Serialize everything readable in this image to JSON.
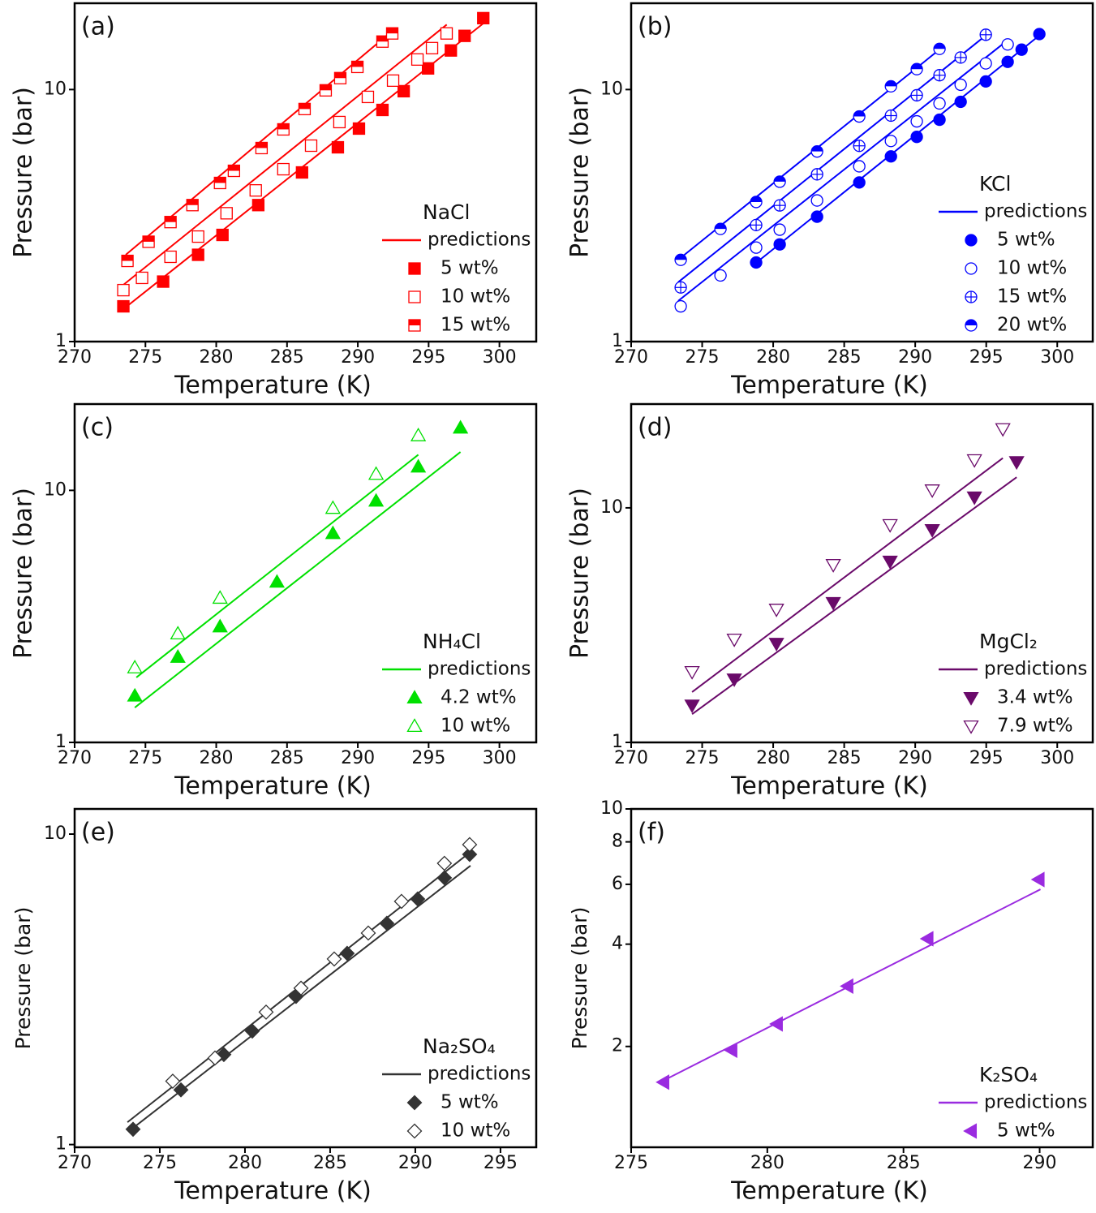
{
  "chart_data": [
    {
      "type": "scatter",
      "label": "(a)",
      "xlabel": "Temperature (K)",
      "ylabel": "Pressure (bar)",
      "xlim": [
        270,
        302.6
      ],
      "ylim": [
        1,
        22
      ],
      "xticks": [
        270,
        275,
        280,
        285,
        290,
        295,
        300
      ],
      "yticks": [
        1,
        10
      ],
      "log_y": true,
      "legend": "lower right",
      "legend_title": "NaCl",
      "color": "#ff0000",
      "series": [
        {
          "name": "predictions",
          "type": "line",
          "lines": [
            {
              "x": [
                273.61,
                292.55
              ],
              "values": [
                2.21,
                17.3
              ]
            },
            {
              "x": [
                273.33,
                296.28
              ],
              "values": [
                1.66,
                18.1
              ]
            },
            {
              "x": [
                273.33,
                298.97
              ],
              "values": [
                1.33,
                18.5
              ]
            }
          ]
        },
        {
          "name": "5 wt%",
          "marker": "square",
          "fill": "full",
          "x": [
            273.44,
            276.25,
            278.72,
            280.44,
            282.97,
            286.06,
            288.59,
            290.08,
            291.74,
            293.24,
            294.96,
            296.57,
            297.54,
            298.86
          ],
          "values": [
            1.38,
            1.73,
            2.21,
            2.65,
            3.48,
            4.69,
            5.9,
            7.0,
            8.3,
            9.85,
            12.13,
            14.29,
            16.33,
            19.2
          ]
        },
        {
          "name": "10 wt%",
          "marker": "square",
          "fill": "none",
          "x": [
            273.44,
            274.76,
            276.77,
            278.72,
            280.73,
            282.79,
            284.74,
            286.7,
            288.7,
            290.71,
            292.49,
            294.21,
            295.24,
            296.27
          ],
          "values": [
            1.6,
            1.79,
            2.17,
            2.61,
            3.23,
            3.98,
            4.83,
            5.99,
            7.43,
            9.35,
            10.85,
            13.16,
            14.6,
            16.7
          ]
        },
        {
          "name": "15 wt%",
          "marker": "square",
          "fill": "top",
          "x": [
            273.73,
            275.22,
            276.77,
            278.32,
            280.27,
            281.25,
            283.2,
            284.74,
            286.24,
            287.73,
            288.76,
            289.97,
            291.74,
            292.43
          ],
          "values": [
            2.09,
            2.49,
            2.98,
            3.48,
            4.26,
            4.76,
            5.86,
            6.95,
            8.37,
            9.93,
            11.1,
            12.3,
            15.5,
            16.7
          ]
        }
      ]
    },
    {
      "type": "scatter",
      "label": "(b)",
      "xlabel": "Temperature (K)",
      "ylabel": "Pressure (bar)",
      "xlim": [
        270,
        302.5
      ],
      "ylim": [
        1,
        22
      ],
      "xticks": [
        270,
        275,
        280,
        285,
        290,
        295,
        300
      ],
      "yticks": [
        1,
        10
      ],
      "log_y": true,
      "legend": "lower right",
      "legend_title": "KCl",
      "color": "#0000ff",
      "series": [
        {
          "name": "predictions",
          "type": "line",
          "lines": [
            {
              "x": [
                273.31,
                291.83
              ],
              "values": [
                2.11,
                14.6
              ]
            },
            {
              "x": [
                273.31,
                295.03
              ],
              "values": [
                1.72,
                16.5
              ]
            },
            {
              "x": [
                273.31,
                296.57
              ],
              "values": [
                1.45,
                15.8
              ]
            },
            {
              "x": [
                278.69,
                298.86
              ],
              "values": [
                2.03,
                16.6
              ]
            }
          ]
        },
        {
          "name": "5 wt%",
          "marker": "circle",
          "fill": "full",
          "x": [
            278.8,
            280.46,
            283.09,
            286.06,
            288.29,
            290.11,
            291.71,
            293.2,
            294.97,
            296.51,
            297.49,
            298.74
          ],
          "values": [
            2.06,
            2.43,
            3.13,
            4.28,
            5.43,
            6.49,
            7.59,
            8.94,
            10.77,
            12.88,
            14.4,
            16.6
          ]
        },
        {
          "name": "10 wt%",
          "marker": "circle",
          "fill": "none",
          "x": [
            273.49,
            276.29,
            278.8,
            280.46,
            283.09,
            286.06,
            288.29,
            290.11,
            291.71,
            293.2,
            294.97,
            296.51
          ],
          "values": [
            1.38,
            1.83,
            2.36,
            2.78,
            3.63,
            4.96,
            6.25,
            7.48,
            8.81,
            10.45,
            12.7,
            15.1
          ]
        },
        {
          "name": "15 wt%",
          "marker": "circle",
          "fill": "cross",
          "x": [
            273.49,
            278.8,
            280.46,
            283.09,
            286.06,
            288.29,
            290.11,
            291.71,
            293.2,
            294.97
          ],
          "values": [
            1.64,
            2.9,
            3.47,
            4.61,
            5.98,
            7.88,
            9.49,
            11.4,
            13.4,
            16.5
          ]
        },
        {
          "name": "20 wt%",
          "marker": "circle",
          "fill": "top",
          "x": [
            273.49,
            276.29,
            278.8,
            280.46,
            283.09,
            286.06,
            288.29,
            290.11,
            291.71
          ],
          "values": [
            2.11,
            2.8,
            3.58,
            4.31,
            5.68,
            7.82,
            10.3,
            12.05,
            14.5
          ]
        }
      ]
    },
    {
      "type": "scatter",
      "label": "(c)",
      "xlabel": "Temperature (K)",
      "ylabel": "Pressure (bar)",
      "xlim": [
        270,
        302.6
      ],
      "ylim": [
        1,
        22
      ],
      "xticks": [
        270,
        275,
        280,
        285,
        290,
        295,
        300
      ],
      "yticks": [
        1,
        10
      ],
      "log_y": true,
      "legend": "lower right",
      "legend_title": "NH₄Cl",
      "color": "#00e000",
      "series": [
        {
          "name": "predictions",
          "type": "line",
          "lines": [
            {
              "x": [
                274.36,
                294.27
              ],
              "values": [
                1.81,
                13.85
              ]
            },
            {
              "x": [
                274.25,
                297.25
              ],
              "values": [
                1.375,
                14.2
              ]
            }
          ]
        },
        {
          "name": "4.2 wt%",
          "marker": "triangle-up",
          "fill": "full",
          "x": [
            274.25,
            277.29,
            280.27,
            284.29,
            288.24,
            291.29,
            294.27,
            297.25
          ],
          "values": [
            1.53,
            2.18,
            2.88,
            4.33,
            6.75,
            9.08,
            12.4,
            17.7
          ]
        },
        {
          "name": "10 wt%",
          "marker": "triangle-up",
          "fill": "none",
          "x": [
            274.25,
            277.29,
            280.27,
            288.24,
            291.29,
            294.27
          ],
          "values": [
            1.98,
            2.7,
            3.74,
            8.5,
            11.6,
            16.5
          ]
        }
      ]
    },
    {
      "type": "scatter",
      "label": "(d)",
      "xlabel": "Temperature (K)",
      "ylabel": "Pressure (bar)",
      "xlim": [
        270,
        302.5
      ],
      "ylim": [
        1,
        27.7
      ],
      "xticks": [
        270,
        275,
        280,
        285,
        290,
        295,
        300
      ],
      "yticks": [
        1,
        10
      ],
      "log_y": true,
      "legend": "lower right",
      "legend_title": "MgCl₂",
      "color": "#6a0a6a",
      "series": [
        {
          "name": "predictions",
          "type": "line",
          "lines": [
            {
              "x": [
                274.29,
                296.17
              ],
              "values": [
                1.64,
                16.3
              ]
            },
            {
              "x": [
                274.29,
                297.14
              ],
              "values": [
                1.32,
                13.5
              ]
            }
          ]
        },
        {
          "name": "3.4 wt%",
          "marker": "triangle-down",
          "fill": "full",
          "x": [
            274.29,
            277.26,
            280.23,
            284.23,
            288.23,
            291.2,
            294.17,
            297.14
          ],
          "values": [
            1.44,
            1.86,
            2.64,
            3.94,
            5.91,
            8.06,
            11.1,
            15.7
          ]
        },
        {
          "name": "7.9 wt%",
          "marker": "triangle-down",
          "fill": "none",
          "x": [
            274.29,
            277.26,
            280.23,
            284.23,
            288.23,
            291.2,
            294.17,
            296.17
          ],
          "values": [
            2.0,
            2.75,
            3.69,
            5.72,
            8.46,
            11.9,
            16.0,
            21.7
          ]
        }
      ]
    },
    {
      "type": "scatter",
      "label": "(e)",
      "xlabel": "Temperature (K)",
      "ylabel": "Pressure (bar)",
      "xlim": [
        270,
        297.1
      ],
      "ylim": [
        0.98,
        12.05
      ],
      "xticks": [
        270,
        275,
        280,
        285,
        290,
        295
      ],
      "yticks": [
        1,
        10
      ],
      "log_y": true,
      "legend": "lower right",
      "legend_title": "Na₂SO₄",
      "color": "#333333",
      "series": [
        {
          "name": "predictions",
          "type": "line",
          "lines": [
            {
              "x": [
                273.1,
                293.24
              ],
              "values": [
                1.18,
                8.76
              ]
            },
            {
              "x": [
                273.24,
                293.24
              ],
              "values": [
                1.11,
                7.91
              ]
            }
          ]
        },
        {
          "name": "5 wt%",
          "marker": "diamond",
          "fill": "full",
          "x": [
            273.43,
            276.24,
            278.76,
            280.43,
            283.0,
            286.0,
            288.33,
            290.14,
            291.71,
            293.19
          ],
          "values": [
            1.12,
            1.5,
            1.95,
            2.32,
            3.0,
            4.13,
            5.16,
            6.18,
            7.23,
            8.6
          ]
        },
        {
          "name": "10 wt%",
          "marker": "diamond",
          "fill": "none",
          "x": [
            275.76,
            278.24,
            281.24,
            283.29,
            285.24,
            287.24,
            289.19,
            291.71,
            293.19
          ],
          "values": [
            1.6,
            1.9,
            2.67,
            3.19,
            3.96,
            4.8,
            6.07,
            8.05,
            9.25
          ]
        }
      ]
    },
    {
      "type": "scatter",
      "label": "(f)",
      "xlabel": "Temperature (K)",
      "ylabel": "Pressure (bar)",
      "xlim": [
        275,
        291.95
      ],
      "ylim": [
        1.01,
        10
      ],
      "xticks": [
        275,
        280,
        285,
        290
      ],
      "yticks": [
        2,
        4,
        6,
        8,
        10
      ],
      "log_y": true,
      "legend": "lower right",
      "legend_title": "K₂SO₄",
      "color": "#9a2be0",
      "series": [
        {
          "name": "predictions",
          "type": "line",
          "lines": [
            {
              "x": [
                276.07,
                290.03
              ],
              "values": [
                1.57,
                5.8
              ]
            }
          ]
        },
        {
          "name": "5 wt%",
          "marker": "triangle-left",
          "fill": "full",
          "x": [
            276.19,
            278.69,
            280.36,
            282.95,
            285.89,
            289.97
          ],
          "values": [
            1.57,
            1.95,
            2.33,
            3.01,
            4.15,
            6.2
          ]
        }
      ]
    }
  ]
}
